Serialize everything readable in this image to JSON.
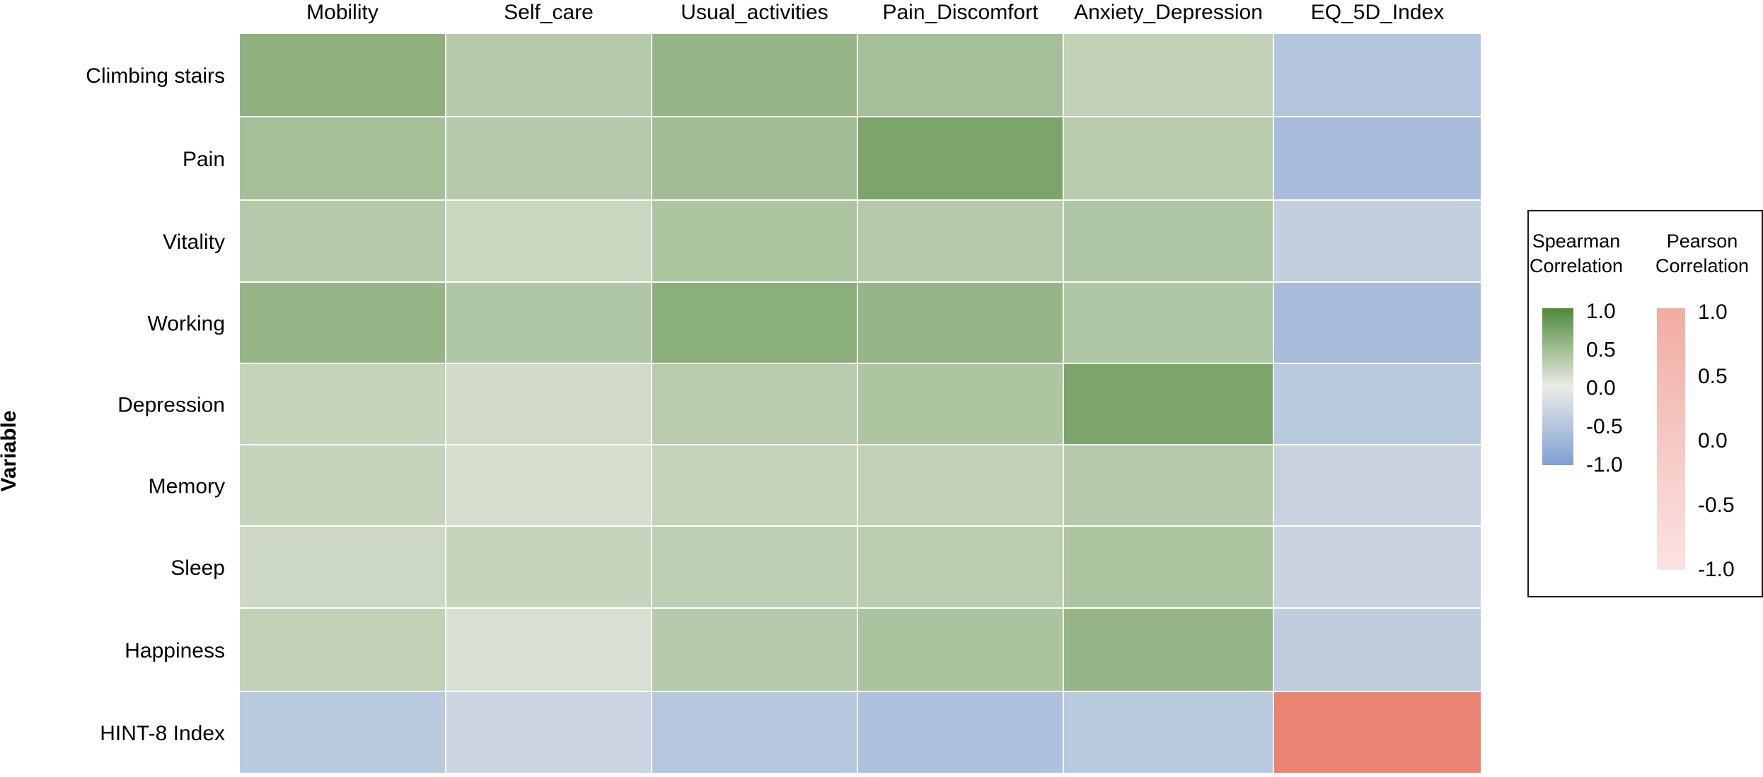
{
  "chart_data": {
    "type": "heatmap",
    "title": "",
    "xlabel": "",
    "ylabel": "Variable",
    "columns": [
      "Mobility",
      "Self_care",
      "Usual_activities",
      "Pain_Discomfort",
      "Anxiety_Depression",
      "EQ_5D_Index"
    ],
    "rows": [
      "Climbing stairs",
      "Pain",
      "Vitality",
      "Working",
      "Depression",
      "Memory",
      "Sleep",
      "Happiness",
      "HINT-8 Index"
    ],
    "spearman_values": [
      [
        0.6,
        0.35,
        0.55,
        0.45,
        0.28,
        -0.52
      ],
      [
        0.45,
        0.35,
        0.48,
        0.72,
        0.33,
        -0.62
      ],
      [
        0.35,
        0.22,
        0.4,
        0.35,
        0.38,
        -0.38
      ],
      [
        0.55,
        0.38,
        0.62,
        0.55,
        0.38,
        -0.62
      ],
      [
        0.25,
        0.18,
        0.33,
        0.4,
        0.72,
        -0.46
      ],
      [
        0.25,
        0.14,
        0.26,
        0.28,
        0.35,
        -0.32
      ],
      [
        0.2,
        0.24,
        0.3,
        0.32,
        0.4,
        -0.32
      ],
      [
        0.28,
        0.12,
        0.35,
        0.42,
        0.55,
        -0.42
      ],
      [
        -0.46,
        -0.3,
        -0.5,
        -0.56,
        -0.46,
        0.9
      ]
    ],
    "pearson_cells": [
      [
        8,
        5
      ]
    ],
    "legend": {
      "position": "right",
      "spearman": {
        "title_line1": "Spearman",
        "title_line2": "Correlation",
        "ticks": [
          "1.0",
          "0.5",
          "0.0",
          "-0.5",
          "-1.0"
        ],
        "tick_values": [
          1.0,
          0.5,
          0.0,
          -0.5,
          -1.0
        ],
        "color_high": "#4f8a3a",
        "color_mid": "#ecece6",
        "color_low": "#7e9fd4"
      },
      "pearson": {
        "title_line1": "Pearson",
        "title_line2": "Correlation",
        "ticks": [
          "1.0",
          "0.5",
          "0.0",
          "-0.5",
          "-1.0"
        ],
        "tick_values": [
          1.0,
          0.5,
          0.0,
          -0.5,
          -1.0
        ],
        "color_high": "#e87f6d",
        "color_low": "#fbe3e3"
      }
    },
    "grid": false
  }
}
